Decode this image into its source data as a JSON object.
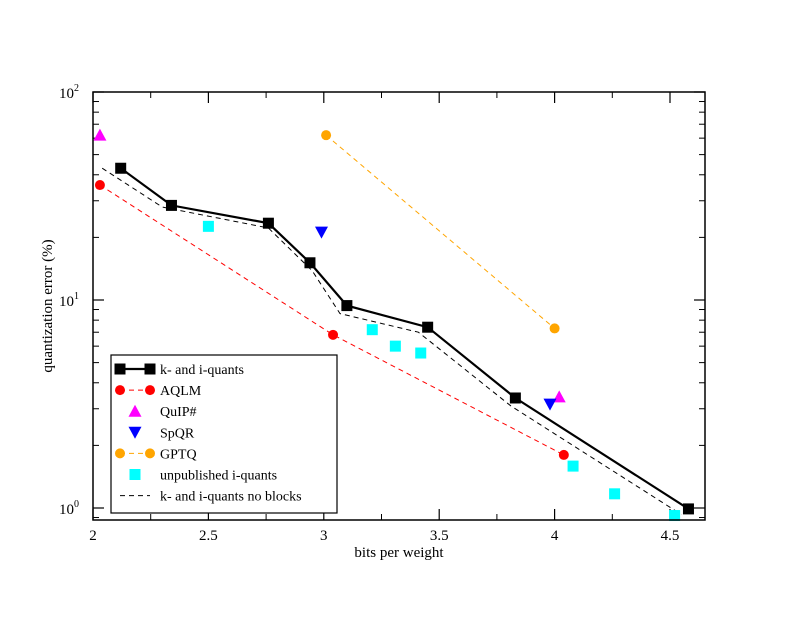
{
  "chart_data": {
    "type": "line",
    "title": "",
    "xlabel": "bits per weight",
    "ylabel": "quantization error (%)",
    "xlim": [
      2.0,
      4.65
    ],
    "ylim": [
      0.875,
      100
    ],
    "yscale": "log",
    "grid": false,
    "legend_position": "bottom-left",
    "x_ticks": [
      {
        "value": 2.0,
        "label": "2"
      },
      {
        "value": 2.5,
        "label": "2.5"
      },
      {
        "value": 3.0,
        "label": "3"
      },
      {
        "value": 3.5,
        "label": "3.5"
      },
      {
        "value": 4.0,
        "label": "4"
      },
      {
        "value": 4.5,
        "label": "4.5"
      }
    ],
    "x_minor_ticks": [
      2.25,
      2.75,
      3.25,
      3.75,
      4.25
    ],
    "y_ticks": [
      {
        "value": 1,
        "base": "10",
        "exp": "0"
      },
      {
        "value": 10,
        "base": "10",
        "exp": "1"
      },
      {
        "value": 100,
        "base": "10",
        "exp": "2"
      }
    ],
    "series": [
      {
        "name": "k- and i-quants",
        "color": "#000000",
        "marker": "square",
        "line": "solid",
        "x": [
          2.12,
          2.34,
          2.76,
          2.94,
          3.1,
          3.45,
          3.83,
          4.58
        ],
        "y": [
          43.0,
          28.5,
          23.4,
          15.1,
          9.4,
          7.4,
          3.38,
          0.99
        ]
      },
      {
        "name": "AQLM",
        "color": "#ff0000",
        "marker": "circle",
        "line": "dashed",
        "x": [
          2.03,
          3.04,
          4.04
        ],
        "y": [
          35.7,
          6.8,
          1.8
        ]
      },
      {
        "name": "QuIP#",
        "color": "#ff00ff",
        "marker": "triangle-up",
        "line": "none",
        "x": [
          2.03,
          4.02
        ],
        "y": [
          62.0,
          3.42
        ]
      },
      {
        "name": "SpQR",
        "color": "#0000ff",
        "marker": "triangle-down",
        "line": "none",
        "x": [
          2.99,
          3.98
        ],
        "y": [
          21.2,
          3.16
        ]
      },
      {
        "name": "GPTQ",
        "color": "#ffa500",
        "marker": "circle",
        "line": "dashed",
        "x": [
          3.01,
          4.0
        ],
        "y": [
          62.0,
          7.3
        ]
      },
      {
        "name": "unpublished i-quants",
        "color": "#00ffff",
        "marker": "square",
        "line": "none",
        "x": [
          2.5,
          3.21,
          3.31,
          3.42,
          4.08,
          4.26,
          4.52
        ],
        "y": [
          22.6,
          7.2,
          6.0,
          5.56,
          1.59,
          1.17,
          0.92
        ]
      },
      {
        "name": "k- and i-quants no blocks",
        "color": "#000000",
        "marker": "none",
        "line": "dashed",
        "x": [
          2.04,
          2.3,
          2.76,
          2.95,
          3.07,
          3.41,
          3.81,
          4.55
        ],
        "y": [
          43.0,
          28.0,
          22.2,
          13.8,
          8.6,
          7.0,
          3.1,
          0.93
        ]
      }
    ]
  }
}
